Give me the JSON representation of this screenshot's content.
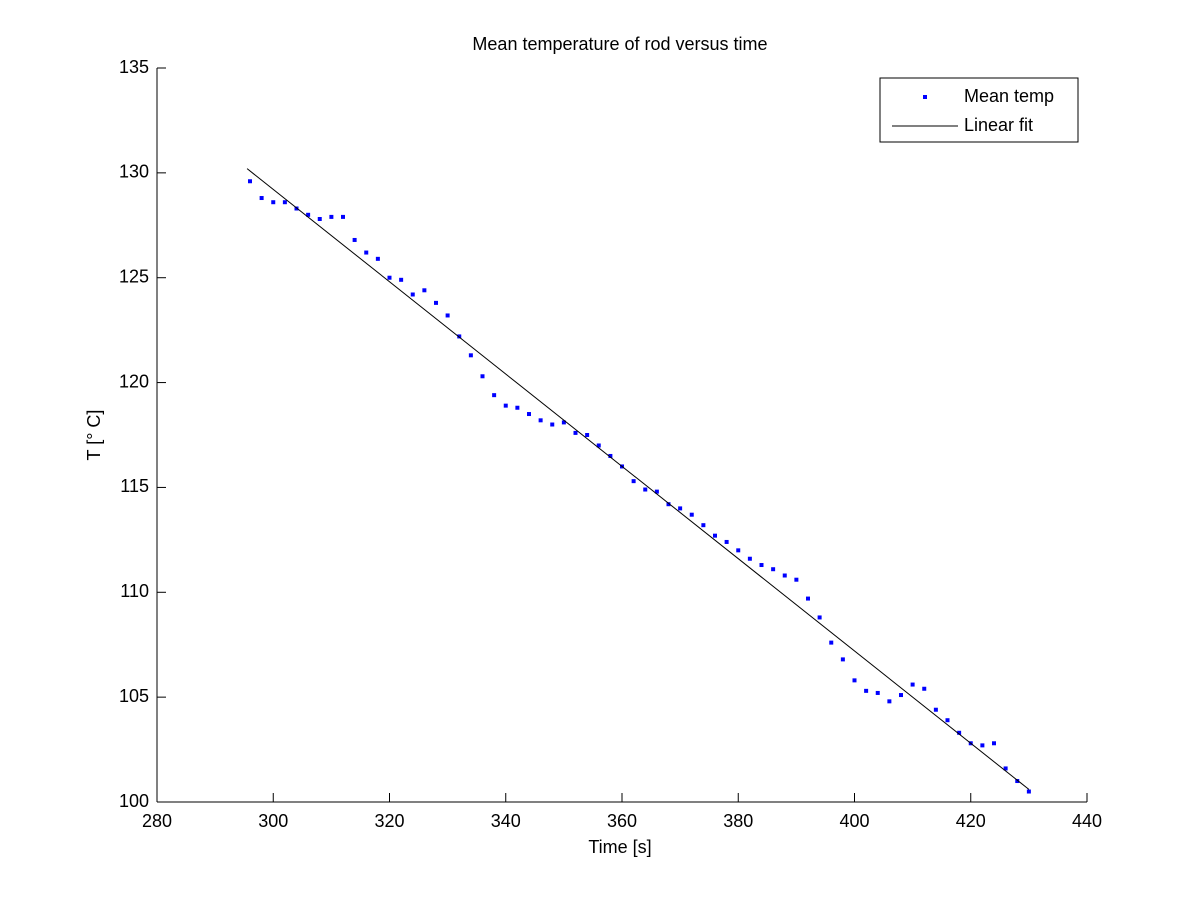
{
  "chart_data": {
    "type": "scatter",
    "title": "Mean temperature of rod versus time",
    "xlabel": "Time [s]",
    "ylabel": "T [° C]",
    "xlim": [
      280,
      440
    ],
    "xticks": [
      280,
      300,
      320,
      340,
      360,
      380,
      400,
      420,
      440
    ],
    "ylim": [
      100,
      135
    ],
    "yticks": [
      100,
      105,
      110,
      115,
      120,
      125,
      130,
      135
    ],
    "legend": "northeast",
    "x": [
      296,
      298,
      300,
      302,
      304,
      306,
      308,
      310,
      312,
      314,
      316,
      318,
      320,
      322,
      324,
      326,
      328,
      330,
      332,
      334,
      336,
      338,
      340,
      342,
      344,
      346,
      348,
      350,
      352,
      354,
      356,
      358,
      360,
      362,
      364,
      366,
      368,
      370,
      372,
      374,
      376,
      378,
      380,
      382,
      384,
      386,
      388,
      390,
      392,
      394,
      396,
      398,
      400,
      402,
      404,
      406,
      408,
      410,
      412,
      414,
      416,
      418,
      420,
      422,
      424,
      426,
      428,
      430
    ],
    "series": [
      {
        "name": "Mean temp",
        "color": "#0000ff",
        "type": "scatter",
        "values": [
          129.6,
          128.8,
          128.6,
          128.6,
          128.3,
          128.0,
          127.8,
          127.9,
          127.9,
          126.8,
          126.2,
          125.9,
          125.0,
          124.9,
          124.2,
          124.4,
          123.8,
          123.2,
          122.2,
          121.3,
          120.3,
          119.4,
          118.9,
          118.8,
          118.5,
          118.2,
          118.0,
          118.1,
          117.6,
          117.5,
          117.0,
          116.5,
          116.0,
          115.3,
          114.9,
          114.8,
          114.2,
          114.0,
          113.7,
          113.2,
          112.7,
          112.4,
          112.0,
          111.6,
          111.3,
          111.1,
          110.8,
          110.6,
          109.7,
          108.8,
          107.6,
          106.8,
          105.8,
          105.3,
          105.2,
          104.8,
          105.1,
          105.6,
          105.4,
          104.4,
          103.9,
          103.3,
          102.8,
          102.7,
          102.8,
          101.6,
          101.0,
          100.5
        ]
      },
      {
        "name": "Linear fit",
        "color": "#000000",
        "type": "line",
        "x": [
          295.5,
          430
        ],
        "values": [
          130.2,
          100.6
        ]
      }
    ]
  }
}
